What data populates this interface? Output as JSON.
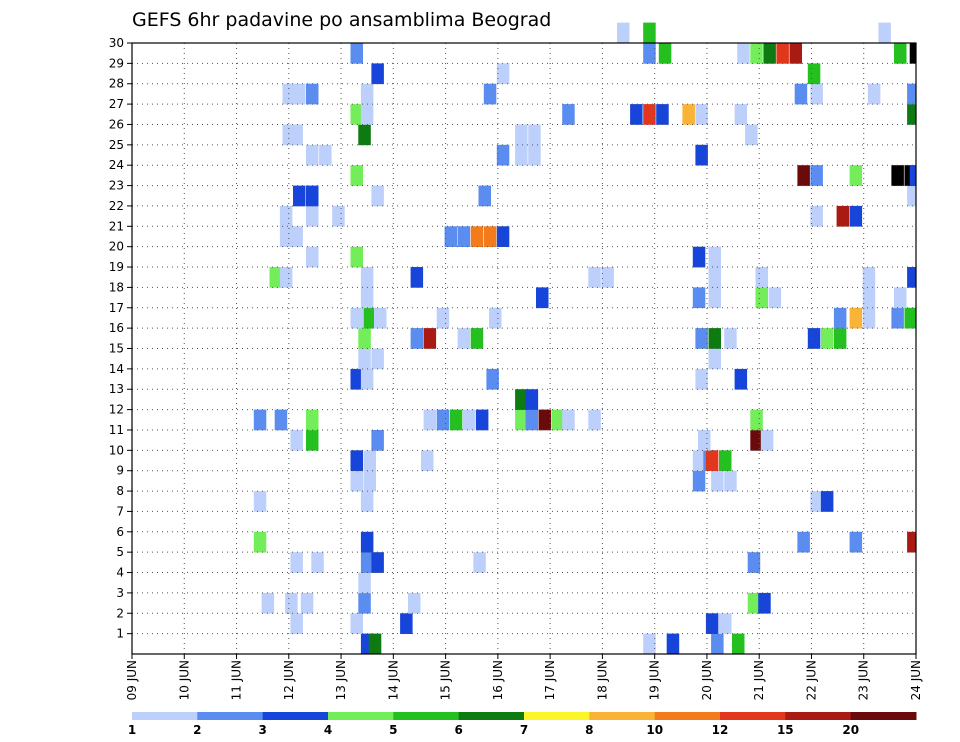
{
  "chart_data": {
    "type": "heatmap",
    "title": "GEFS 6hr padavine po ansamblima Beograd",
    "x_ticks": [
      "09 JUN",
      "10 JUN",
      "11 JUN",
      "12 JUN",
      "13 JUN",
      "14 JUN",
      "15 JUN",
      "16 JUN",
      "17 JUN",
      "18 JUN",
      "19 JUN",
      "20 JUN",
      "21 JUN",
      "22 JUN",
      "23 JUN",
      "24 JUN"
    ],
    "y_ticks": [
      "1",
      "2",
      "3",
      "4",
      "5",
      "6",
      "7",
      "8",
      "9",
      "10",
      "11",
      "12",
      "13",
      "14",
      "15",
      "16",
      "17",
      "18",
      "19",
      "20",
      "21",
      "22",
      "23",
      "24",
      "25",
      "26",
      "27",
      "28",
      "29",
      "30"
    ],
    "grid": true,
    "colorbar": {
      "labels": [
        "1",
        "2",
        "3",
        "4",
        "5",
        "6",
        "7",
        "8",
        "10",
        "12",
        "15",
        "20"
      ],
      "colors": [
        "#bdd0fb",
        "#5b8cf0",
        "#1745d9",
        "#73ee5a",
        "#23c020",
        "#0e7a12",
        "#faf62a",
        "#f9b437",
        "#f47b1b",
        "#e0371d",
        "#a91a12",
        "#6a0b0b"
      ]
    },
    "cells": [
      [
        13.5,
        0,
        3
      ],
      [
        13.65,
        0,
        6
      ],
      [
        18.9,
        0,
        1
      ],
      [
        19.35,
        0,
        3
      ],
      [
        20.2,
        0,
        2
      ],
      [
        20.6,
        0,
        5
      ],
      [
        12.15,
        1,
        1
      ],
      [
        13.3,
        1,
        1
      ],
      [
        14.25,
        1,
        3
      ],
      [
        20.1,
        1,
        3
      ],
      [
        20.35,
        1,
        1
      ],
      [
        11.6,
        2,
        1
      ],
      [
        12.05,
        2,
        1
      ],
      [
        12.35,
        2,
        1
      ],
      [
        13.45,
        2,
        2
      ],
      [
        14.4,
        2,
        1
      ],
      [
        20.9,
        2,
        4
      ],
      [
        21.1,
        2,
        3
      ],
      [
        13.45,
        3,
        1
      ],
      [
        12.15,
        4,
        1
      ],
      [
        12.55,
        4,
        1
      ],
      [
        13.5,
        4,
        2
      ],
      [
        13.7,
        4,
        3
      ],
      [
        15.65,
        4,
        1
      ],
      [
        20.9,
        4,
        2
      ],
      [
        11.45,
        5,
        4
      ],
      [
        13.5,
        5,
        3
      ],
      [
        21.85,
        5,
        2
      ],
      [
        22.85,
        5,
        2
      ],
      [
        23.95,
        5,
        11
      ],
      [
        11.45,
        7,
        1
      ],
      [
        13.5,
        7,
        1
      ],
      [
        22.1,
        7,
        1
      ],
      [
        22.3,
        7,
        3
      ],
      [
        13.3,
        8,
        1
      ],
      [
        13.55,
        8,
        1
      ],
      [
        19.85,
        8,
        2
      ],
      [
        20.2,
        8,
        1
      ],
      [
        20.45,
        8,
        1
      ],
      [
        13.3,
        9,
        3
      ],
      [
        13.55,
        9,
        1
      ],
      [
        14.65,
        9,
        1
      ],
      [
        19.85,
        9,
        1
      ],
      [
        20.05,
        9,
        2
      ],
      [
        20.1,
        9,
        10
      ],
      [
        20.35,
        9,
        5
      ],
      [
        12.15,
        10,
        1
      ],
      [
        12.45,
        10,
        5
      ],
      [
        13.7,
        10,
        2
      ],
      [
        19.95,
        10,
        1
      ],
      [
        20.95,
        10,
        12
      ],
      [
        21.15,
        10,
        1
      ],
      [
        11.45,
        11,
        2
      ],
      [
        11.85,
        11,
        2
      ],
      [
        12.45,
        11,
        4
      ],
      [
        14.7,
        11,
        1
      ],
      [
        14.95,
        11,
        2
      ],
      [
        15.2,
        11,
        5
      ],
      [
        15.45,
        11,
        1
      ],
      [
        15.7,
        11,
        3
      ],
      [
        16.45,
        11,
        4
      ],
      [
        16.65,
        11,
        2
      ],
      [
        16.9,
        11,
        12
      ],
      [
        17.15,
        11,
        4
      ],
      [
        17.35,
        11,
        1
      ],
      [
        17.85,
        11,
        1
      ],
      [
        20.95,
        11,
        4
      ],
      [
        16.45,
        12,
        6
      ],
      [
        16.65,
        12,
        3
      ],
      [
        13.3,
        13,
        3
      ],
      [
        13.5,
        13,
        1
      ],
      [
        15.9,
        13,
        2
      ],
      [
        19.9,
        13,
        1
      ],
      [
        20.65,
        13,
        3
      ],
      [
        13.45,
        14,
        1
      ],
      [
        13.7,
        14,
        1
      ],
      [
        20.15,
        14,
        1
      ],
      [
        13.45,
        15,
        4
      ],
      [
        14.45,
        15,
        2
      ],
      [
        14.7,
        15,
        11
      ],
      [
        15.35,
        15,
        1
      ],
      [
        15.6,
        15,
        5
      ],
      [
        19.9,
        15,
        2
      ],
      [
        20.15,
        15,
        6
      ],
      [
        20.45,
        15,
        1
      ],
      [
        22.05,
        15,
        3
      ],
      [
        22.3,
        15,
        4
      ],
      [
        22.55,
        15,
        5
      ],
      [
        13.3,
        16,
        1
      ],
      [
        13.55,
        16,
        5
      ],
      [
        13.75,
        16,
        1
      ],
      [
        14.95,
        16,
        1
      ],
      [
        15.95,
        16,
        1
      ],
      [
        22.55,
        16,
        2
      ],
      [
        22.85,
        16,
        8
      ],
      [
        23.1,
        16,
        1
      ],
      [
        23.65,
        16,
        2
      ],
      [
        23.9,
        16,
        5
      ],
      [
        13.5,
        17,
        1
      ],
      [
        16.85,
        17,
        3
      ],
      [
        19.85,
        17,
        2
      ],
      [
        20.15,
        17,
        1
      ],
      [
        21.05,
        17,
        4
      ],
      [
        21.3,
        17,
        1
      ],
      [
        23.1,
        17,
        1
      ],
      [
        23.7,
        17,
        1
      ],
      [
        11.75,
        18,
        4
      ],
      [
        11.95,
        18,
        1
      ],
      [
        13.5,
        18,
        1
      ],
      [
        14.45,
        18,
        3
      ],
      [
        17.85,
        18,
        1
      ],
      [
        18.1,
        18,
        1
      ],
      [
        20.15,
        18,
        1
      ],
      [
        21.05,
        18,
        1
      ],
      [
        23.1,
        18,
        1
      ],
      [
        23.95,
        18,
        3
      ],
      [
        12.45,
        19,
        1
      ],
      [
        13.3,
        19,
        4
      ],
      [
        19.85,
        19,
        3
      ],
      [
        20.15,
        19,
        1
      ],
      [
        11.95,
        20,
        1
      ],
      [
        12.15,
        20,
        1
      ],
      [
        15.1,
        20,
        2
      ],
      [
        15.35,
        20,
        2
      ],
      [
        15.6,
        20,
        9
      ],
      [
        15.85,
        20,
        9
      ],
      [
        16.1,
        20,
        3
      ],
      [
        11.95,
        21,
        1
      ],
      [
        12.45,
        21,
        1
      ],
      [
        12.95,
        21,
        1
      ],
      [
        22.1,
        21,
        1
      ],
      [
        22.6,
        21,
        11
      ],
      [
        22.85,
        21,
        3
      ],
      [
        12.2,
        22,
        3
      ],
      [
        12.45,
        22,
        3
      ],
      [
        13.7,
        22,
        1
      ],
      [
        15.75,
        22,
        2
      ],
      [
        23.95,
        22,
        1
      ],
      [
        13.3,
        23,
        4
      ],
      [
        21.85,
        23,
        12
      ],
      [
        22.1,
        23,
        2
      ],
      [
        22.85,
        23,
        4
      ],
      [
        23.65,
        23,
        13
      ],
      [
        23.9,
        23,
        13
      ],
      [
        24.0,
        23,
        3
      ],
      [
        12.45,
        24,
        1
      ],
      [
        12.7,
        24,
        1
      ],
      [
        16.1,
        24,
        2
      ],
      [
        16.45,
        24,
        1
      ],
      [
        16.7,
        24,
        1
      ],
      [
        19.9,
        24,
        3
      ],
      [
        12.0,
        25,
        1
      ],
      [
        12.15,
        25,
        1
      ],
      [
        13.45,
        25,
        6
      ],
      [
        16.45,
        25,
        1
      ],
      [
        16.7,
        25,
        1
      ],
      [
        20.85,
        25,
        1
      ],
      [
        13.3,
        26,
        4
      ],
      [
        13.5,
        26,
        1
      ],
      [
        17.35,
        26,
        2
      ],
      [
        18.65,
        26,
        3
      ],
      [
        18.9,
        26,
        10
      ],
      [
        19.15,
        26,
        3
      ],
      [
        19.65,
        26,
        8
      ],
      [
        19.9,
        26,
        1
      ],
      [
        20.65,
        26,
        1
      ],
      [
        23.95,
        26,
        6
      ],
      [
        12.0,
        27,
        1
      ],
      [
        12.2,
        27,
        1
      ],
      [
        12.45,
        27,
        2
      ],
      [
        13.5,
        27,
        1
      ],
      [
        15.85,
        27,
        2
      ],
      [
        21.8,
        27,
        2
      ],
      [
        22.1,
        27,
        1
      ],
      [
        23.2,
        27,
        1
      ],
      [
        23.95,
        27,
        2
      ],
      [
        13.7,
        28,
        3
      ],
      [
        16.1,
        28,
        1
      ],
      [
        22.05,
        28,
        5
      ],
      [
        13.3,
        29,
        2
      ],
      [
        18.9,
        29,
        2
      ],
      [
        19.2,
        29,
        5
      ],
      [
        20.7,
        29,
        1
      ],
      [
        20.95,
        29,
        4
      ],
      [
        21.2,
        29,
        6
      ],
      [
        21.45,
        29,
        10
      ],
      [
        21.7,
        29,
        11
      ],
      [
        23.7,
        29,
        5
      ],
      [
        24.0,
        29,
        13
      ],
      [
        18.4,
        30,
        1
      ],
      [
        18.9,
        30,
        5
      ],
      [
        23.4,
        30,
        1
      ]
    ]
  }
}
